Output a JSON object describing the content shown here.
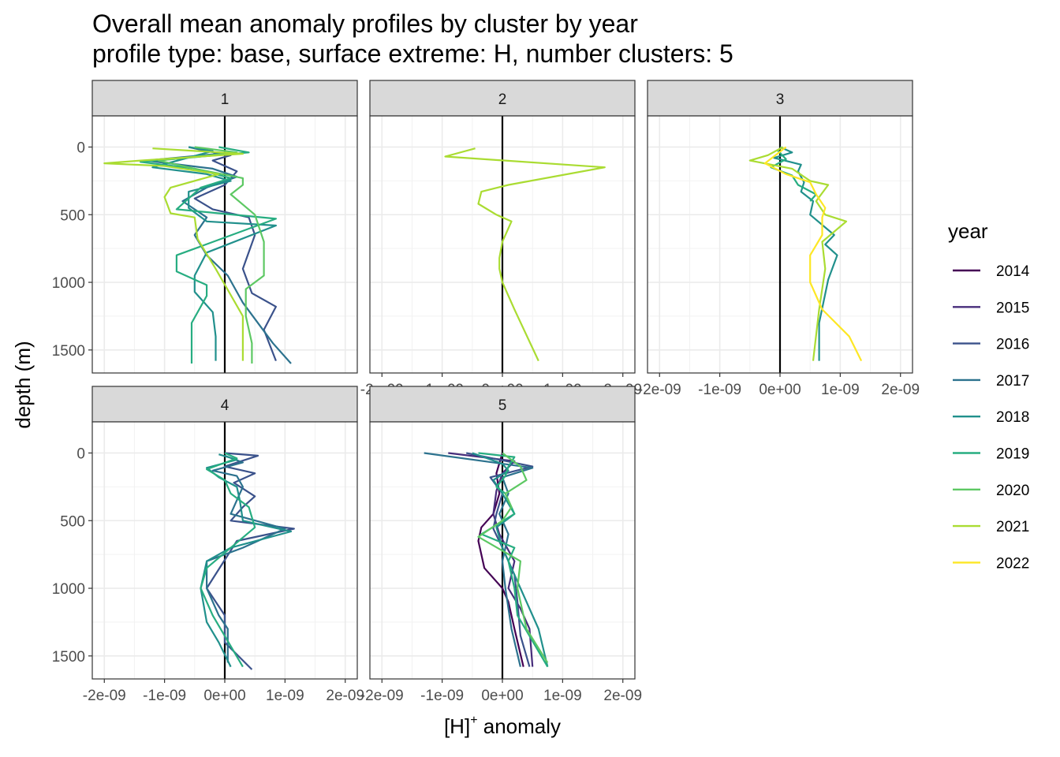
{
  "chart_data": {
    "type": "line",
    "title": "Overall mean anomaly profiles by cluster by year",
    "subtitle": "profile type: base, surface extreme: H, number clusters: 5",
    "xlabel": {
      "main": "[H]",
      "sup": "+",
      "rest": " anomaly"
    },
    "ylabel": "depth (m)",
    "xlim": [
      -2.2e-09,
      2.2e-09
    ],
    "ylim": [
      -230,
      1670
    ],
    "x_ticks": [
      -2e-09,
      -1e-09,
      0,
      1e-09,
      2e-09
    ],
    "x_tick_labels": [
      "-2e-09",
      "-1e-09",
      "0e+00",
      "1e-09",
      "2e-09"
    ],
    "y_ticks": [
      0,
      500,
      1000,
      1500
    ],
    "y_tick_labels": [
      "0",
      "500",
      "1000",
      "1500"
    ],
    "legend": {
      "title": "year",
      "position": "right",
      "entries": [
        {
          "label": "2014",
          "color": "#440154"
        },
        {
          "label": "2015",
          "color": "#472D7B"
        },
        {
          "label": "2016",
          "color": "#3B528B"
        },
        {
          "label": "2017",
          "color": "#2C728E"
        },
        {
          "label": "2018",
          "color": "#21908C"
        },
        {
          "label": "2019",
          "color": "#27AD81"
        },
        {
          "label": "2020",
          "color": "#5DC863"
        },
        {
          "label": "2021",
          "color": "#AADC32"
        },
        {
          "label": "2022",
          "color": "#FDE725"
        }
      ]
    },
    "panels": [
      {
        "label": "1",
        "series": [
          {
            "name": "2016",
            "color": "#3B528B",
            "x": [
              -6e-10,
              -3e-10,
              1e-10,
              -2e-10,
              2e-10,
              0.0,
              -5e-10,
              -2e-10,
              4e-10,
              5e-10,
              3e-10,
              4.5e-10,
              8.5e-10,
              6.5e-10,
              8.5e-10
            ],
            "y": [
              0,
              30,
              60,
              100,
              180,
              280,
              380,
              460,
              520,
              650,
              900,
              1080,
              1180,
              1350,
              1580
            ]
          },
          {
            "name": "2017",
            "color": "#2C728E",
            "x": [
              -5e-10,
              -1e-10,
              -1.3e-09,
              -2e-10,
              2e-10,
              -3e-10,
              -7e-10,
              -3e-10,
              -5e-10,
              -3e-10,
              5e-11,
              3e-10,
              8e-10,
              1.1e-09
            ],
            "y": [
              0,
              50,
              100,
              160,
              220,
              300,
              400,
              520,
              650,
              800,
              950,
              1150,
              1450,
              1600
            ]
          },
          {
            "name": "2018",
            "color": "#21908C",
            "x": [
              -6e-10,
              -2e-10,
              -1.2e-09,
              -3e-10,
              1e-10,
              -6e-10,
              -6e-10,
              -3e-10,
              8.5e-10,
              -3e-10,
              -5e-10,
              -5e-10,
              -2e-10,
              -1.5e-10,
              -1.5e-10
            ],
            "y": [
              0,
              30,
              150,
              200,
              250,
              330,
              450,
              550,
              580,
              780,
              950,
              1070,
              1220,
              1400,
              1580
            ]
          },
          {
            "name": "2019",
            "color": "#27AD81",
            "x": [
              -1e-10,
              4e-10,
              -1.4e-09,
              -5e-10,
              1e-10,
              -4e-10,
              -8e-10,
              8.5e-10,
              -8e-10,
              -8e-10,
              -3e-10,
              -3e-10,
              -5.5e-10,
              -5.5e-10
            ],
            "y": [
              0,
              40,
              110,
              160,
              230,
              300,
              460,
              530,
              800,
              920,
              1020,
              1100,
              1300,
              1600
            ]
          },
          {
            "name": "2020",
            "color": "#5DC863",
            "x": [
              -5e-10,
              2e-10,
              -1.1e-09,
              -5e-10,
              3e-10,
              3e-10,
              1e-10,
              5e-10,
              6.5e-10,
              6.5e-10,
              3.5e-10,
              3.5e-10,
              4.5e-10,
              4.5e-10
            ],
            "y": [
              0,
              40,
              100,
              160,
              230,
              280,
              350,
              500,
              700,
              950,
              1050,
              1250,
              1450,
              1600
            ]
          },
          {
            "name": "2021",
            "color": "#AADC32",
            "x": [
              -1.2e-09,
              3e-10,
              -1.4e-09,
              -2e-09,
              -1e-09,
              -1e-10,
              -9e-10,
              -1e-09,
              -9e-10,
              -5e-10,
              -4.5e-10,
              -1.5e-10,
              3e-10,
              3e-10
            ],
            "y": [
              10,
              50,
              100,
              120,
              140,
              200,
              300,
              370,
              490,
              520,
              680,
              900,
              1250,
              1580
            ]
          }
        ]
      },
      {
        "label": "2",
        "series": [
          {
            "name": "2021",
            "color": "#AADC32",
            "x": [
              -4.5e-10,
              -9.5e-10,
              1.7e-09,
              1e-10,
              -3.5e-10,
              -4e-10,
              -1e-10,
              1.5e-10,
              0.0,
              -5e-11,
              -5e-11,
              0.0,
              2e-10,
              6e-10
            ],
            "y": [
              10,
              70,
              150,
              280,
              330,
              420,
              500,
              550,
              700,
              820,
              900,
              1000,
              1200,
              1580
            ]
          }
        ]
      },
      {
        "label": "3",
        "series": [
          {
            "name": "2018",
            "color": "#21908C",
            "x": [
              0.0,
              2e-10,
              -1e-10,
              3.5e-10,
              3e-10,
              4e-10,
              3.5e-10,
              5.5e-10,
              5e-10,
              9e-10,
              7.5e-10,
              9.5e-10,
              8e-10,
              6.5e-10,
              6.5e-10
            ],
            "y": [
              0,
              40,
              80,
              130,
              180,
              260,
              330,
              400,
              500,
              650,
              720,
              800,
              980,
              1300,
              1580
            ]
          },
          {
            "name": "2019",
            "color": "#27AD81",
            "x": [
              -5e-11,
              1e-10,
              -1.5e-10,
              2e-10,
              3e-10,
              6e-10,
              5e-10
            ],
            "y": [
              20,
              90,
              150,
              210,
              280,
              350,
              400
            ]
          },
          {
            "name": "2021",
            "color": "#AADC32",
            "x": [
              5e-11,
              -2e-10,
              -5e-10,
              2e-10,
              5e-10,
              8e-10,
              6e-10,
              7.5e-10,
              1.1e-09,
              7e-10,
              7.5e-10,
              6.5e-10,
              5.5e-10
            ],
            "y": [
              0,
              60,
              100,
              160,
              250,
              280,
              400,
              500,
              550,
              700,
              900,
              1200,
              1580
            ]
          },
          {
            "name": "2022",
            "color": "#FDE725",
            "x": [
              1e-10,
              -2.5e-10,
              1e-10,
              5e-10,
              6e-10,
              7.5e-10,
              7e-10,
              7e-10,
              5e-10,
              5e-10,
              7e-10,
              1.15e-09,
              1.35e-09
            ],
            "y": [
              0,
              120,
              200,
              260,
              350,
              450,
              520,
              650,
              800,
              1000,
              1200,
              1400,
              1580
            ]
          }
        ]
      },
      {
        "label": "4",
        "series": [
          {
            "name": "2016",
            "color": "#3B528B",
            "x": [
              0.0,
              5.5e-10,
              0.0,
              5e-10,
              1.5e-10,
              5e-10,
              3e-10,
              1e-10,
              1.15e-09,
              2e-10,
              -3e-10,
              0.0,
              0.0,
              4.5e-10
            ],
            "y": [
              0,
              20,
              100,
              150,
              220,
              320,
              400,
              500,
              560,
              650,
              1000,
              1200,
              1400,
              1600
            ]
          },
          {
            "name": "2017",
            "color": "#2C728E",
            "x": [
              0.0,
              3e-10,
              -2e-10,
              2e-10,
              3e-10,
              1e-10,
              1e-09,
              3e-10,
              -3e-10,
              -3e-10,
              -1e-10,
              5e-11,
              5e-11
            ],
            "y": [
              20,
              70,
              130,
              170,
              250,
              450,
              560,
              700,
              800,
              1000,
              1200,
              1300,
              1550
            ]
          },
          {
            "name": "2018",
            "color": "#21908C",
            "x": [
              -1e-10,
              2e-10,
              -3e-10,
              -1e-10,
              2e-10,
              2.5e-10,
              3e-10,
              1.1e-09,
              1e-10,
              -3e-10,
              -4e-10,
              -3e-10,
              -1e-10,
              1e-10
            ],
            "y": [
              10,
              50,
              110,
              180,
              250,
              350,
              500,
              580,
              700,
              800,
              1000,
              1250,
              1400,
              1580
            ]
          },
          {
            "name": "2019",
            "color": "#27AD81",
            "x": [
              0.0,
              2e-10,
              -3e-10,
              0.0,
              1e-10,
              4e-10,
              5e-10,
              -3e-10,
              -4e-10,
              -2e-10,
              3e-10
            ],
            "y": [
              0,
              40,
              120,
              200,
              300,
              400,
              550,
              850,
              1000,
              1200,
              1580
            ]
          }
        ]
      },
      {
        "label": "5",
        "series": [
          {
            "name": "2014",
            "color": "#440154",
            "x": [
              0.0,
              -1e-10,
              -5e-11,
              -1.5e-10,
              -3.5e-10,
              -4e-10,
              -3e-10,
              0.0,
              1e-10,
              2e-10,
              3.5e-10
            ],
            "y": [
              0,
              150,
              300,
              450,
              550,
              650,
              850,
              1000,
              1100,
              1300,
              1580
            ]
          },
          {
            "name": "2015",
            "color": "#472D7B",
            "x": [
              -9e-10,
              2e-10,
              0.0,
              -1e-10,
              -1.5e-10,
              -5e-11,
              2e-10,
              1e-10,
              3e-10,
              4.5e-10,
              5e-10
            ],
            "y": [
              0,
              60,
              150,
              280,
              450,
              600,
              800,
              1000,
              1150,
              1300,
              1580
            ]
          },
          {
            "name": "2016",
            "color": "#3B528B",
            "x": [
              -6e-10,
              5e-10,
              -2e-10,
              0.0,
              -1e-10,
              -1.5e-10,
              0.0,
              2e-10,
              2.5e-10,
              3e-10,
              4.5e-10
            ],
            "y": [
              0,
              100,
              180,
              300,
              450,
              560,
              700,
              900,
              1100,
              1350,
              1580
            ]
          },
          {
            "name": "2017",
            "color": "#2C728E",
            "x": [
              -1.3e-09,
              5e-10,
              0.0,
              1e-10,
              -5e-11,
              1e-10,
              0.0,
              5e-11,
              1.5e-10,
              3e-10
            ],
            "y": [
              0,
              110,
              180,
              300,
              450,
              600,
              800,
              1000,
              1300,
              1580
            ]
          },
          {
            "name": "2018",
            "color": "#21908C",
            "x": [
              -5e-10,
              0.0,
              1e-10,
              -1.5e-10,
              0.0,
              2e-10,
              -1e-10,
              0.0,
              1e-10,
              3e-10,
              6e-10,
              7.5e-10
            ],
            "y": [
              0,
              80,
              130,
              200,
              300,
              450,
              550,
              700,
              800,
              1000,
              1300,
              1580
            ]
          },
          {
            "name": "2019",
            "color": "#27AD81",
            "x": [
              -4e-10,
              2e-10,
              1e-10,
              5e-11,
              -1e-10,
              5e-11,
              2e-10,
              -3.5e-10,
              2e-10,
              1e-10,
              2e-10,
              2.5e-10,
              7.5e-10
            ],
            "y": [
              0,
              30,
              100,
              170,
              250,
              300,
              450,
              600,
              700,
              800,
              1000,
              1200,
              1580
            ]
          },
          {
            "name": "2020",
            "color": "#5DC863",
            "x": [
              0.0,
              3e-10,
              4e-10,
              5e-11,
              1.5e-10,
              0.0,
              -4e-10,
              3e-10,
              2.5e-10,
              4e-10,
              7.5e-10
            ],
            "y": [
              0,
              100,
              200,
              300,
              400,
              500,
              620,
              800,
              1000,
              1300,
              1550
            ]
          }
        ]
      }
    ]
  }
}
